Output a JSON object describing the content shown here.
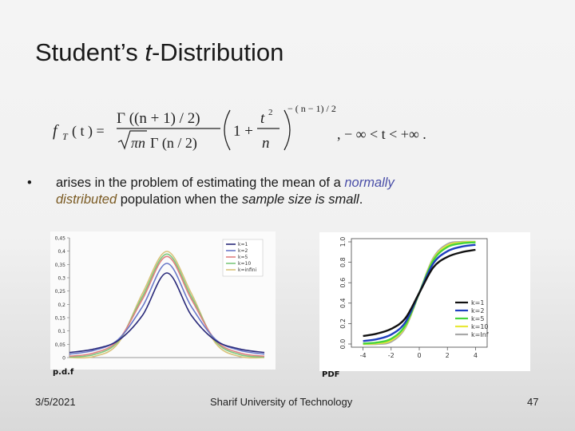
{
  "slide": {
    "title_prefix": "Student’s ",
    "title_italic": "t",
    "title_suffix": "-Distribution",
    "formula": {
      "lhs": "f",
      "lhs_sub": "T",
      "lhs_arg": "( t ) =",
      "numerator": "Γ ((n + 1) / 2)",
      "denominator_sqrt": "πn",
      "denominator_rest": "Γ (n / 2)",
      "base_one": "1 +",
      "t_sq_num": "t",
      "t_sq_exp": "2",
      "t_sq_den": "n",
      "exponent": "− ( n − 1) / 2",
      "domain": ",    − ∞ < t < +∞ ."
    },
    "bullet": {
      "marker": "•",
      "text_1": "arises in the problem of estimating the mean of a ",
      "normally": "normally",
      "distributed": "distributed",
      "text_2": " population when the ",
      "sample_size": "sample size is small",
      "text_3": "."
    },
    "footer": {
      "date": "3/5/2021",
      "institution": "Sharif University of Technology",
      "page": "47"
    }
  },
  "chart_data": [
    {
      "type": "line",
      "caption": "p.d.f",
      "x": [
        -4,
        -3,
        -2,
        -1,
        0,
        1,
        2,
        3,
        4
      ],
      "ylim": [
        0,
        0.45
      ],
      "yticks": [
        "0",
        "0,05",
        "0,1",
        "0,15",
        "0,2",
        "0,25",
        "0,3",
        "0,35",
        "0,4",
        "0,45"
      ],
      "series": [
        {
          "name": "k=1",
          "color": "#2a2a7a",
          "values": [
            0.019,
            0.032,
            0.064,
            0.159,
            0.318,
            0.159,
            0.064,
            0.032,
            0.019
          ]
        },
        {
          "name": "k=2",
          "color": "#6a78c8",
          "values": [
            0.013,
            0.027,
            0.068,
            0.192,
            0.354,
            0.192,
            0.068,
            0.027,
            0.013
          ]
        },
        {
          "name": "k=5",
          "color": "#e08080",
          "values": [
            0.005,
            0.017,
            0.065,
            0.22,
            0.38,
            0.22,
            0.065,
            0.017,
            0.005
          ]
        },
        {
          "name": "k=10",
          "color": "#7dc87d",
          "values": [
            0.002,
            0.011,
            0.061,
            0.23,
            0.389,
            0.23,
            0.061,
            0.011,
            0.002
          ]
        },
        {
          "name": "k=infini",
          "color": "#d9c27a",
          "values": [
            0.0001,
            0.004,
            0.054,
            0.242,
            0.399,
            0.242,
            0.054,
            0.004,
            0.0001
          ]
        }
      ],
      "legend": "top-right",
      "grid": false
    },
    {
      "type": "line",
      "caption": "PDF",
      "x": [
        -4,
        -3,
        -2,
        -1,
        0,
        1,
        2,
        3,
        4
      ],
      "xticks": [
        "-4",
        "-2",
        "0",
        "2",
        "4"
      ],
      "yticks": [
        "0.0",
        "0.2",
        "0.4",
        "0.6",
        "0.8",
        "1.0"
      ],
      "ylim": [
        0,
        1
      ],
      "series": [
        {
          "name": "k=1",
          "color": "#111111",
          "values": [
            0.078,
            0.102,
            0.148,
            0.25,
            0.5,
            0.75,
            0.852,
            0.898,
            0.922
          ]
        },
        {
          "name": "k=2",
          "color": "#1f3fbf",
          "values": [
            0.029,
            0.048,
            0.092,
            0.211,
            0.5,
            0.789,
            0.908,
            0.952,
            0.971
          ]
        },
        {
          "name": "k=5",
          "color": "#46d43c",
          "values": [
            0.005,
            0.015,
            0.051,
            0.182,
            0.5,
            0.818,
            0.949,
            0.985,
            0.995
          ]
        },
        {
          "name": "k=10",
          "color": "#e8e838",
          "values": [
            0.001,
            0.007,
            0.037,
            0.17,
            0.5,
            0.83,
            0.963,
            0.993,
            0.999
          ]
        },
        {
          "name": "k=Inf",
          "color": "#a8a8a8",
          "values": [
            0.0,
            0.001,
            0.023,
            0.159,
            0.5,
            0.841,
            0.977,
            0.999,
            1.0
          ]
        }
      ],
      "legend": "bottom-right",
      "grid": false
    }
  ]
}
